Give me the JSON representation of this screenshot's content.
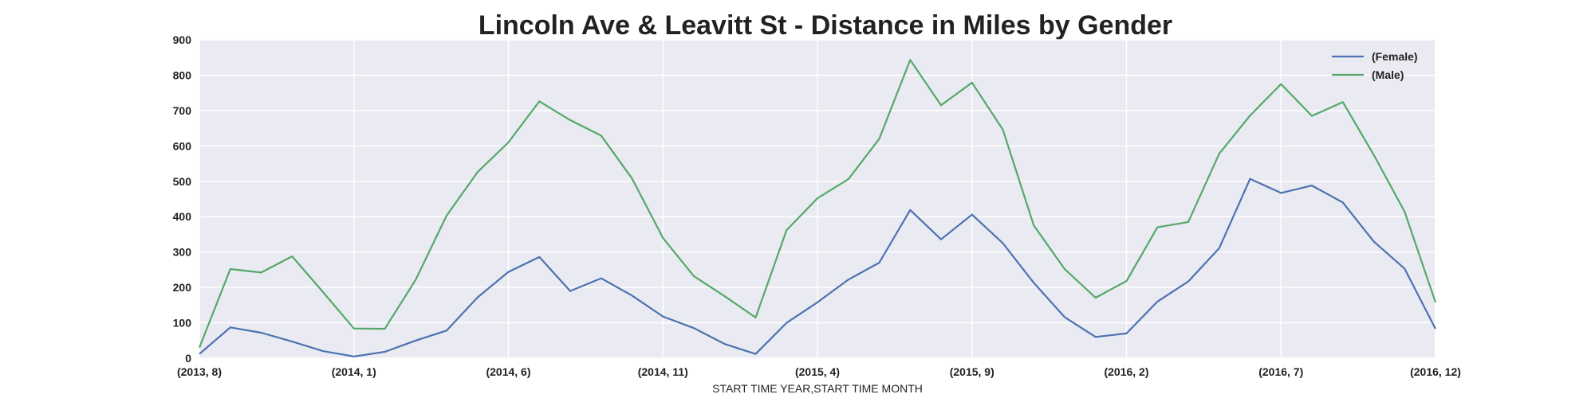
{
  "chart_data": {
    "type": "line",
    "title": "Lincoln Ave & Leavitt St - Distance in Miles by Gender",
    "xlabel": "START TIME YEAR,START TIME MONTH",
    "ylabel": "",
    "ylim": [
      0,
      900
    ],
    "yticks": [
      0,
      100,
      200,
      300,
      400,
      500,
      600,
      700,
      800,
      900
    ],
    "grid": true,
    "legend_position": "top-right",
    "background_color": "#eaeaf2",
    "xtick_labels": [
      "(2013, 8)",
      "(2014, 1)",
      "(2014, 6)",
      "(2014, 11)",
      "(2015, 4)",
      "(2015, 9)",
      "(2016, 2)",
      "(2016, 7)",
      "(2016, 12)"
    ],
    "xtick_indices": [
      0,
      5,
      10,
      15,
      20,
      25,
      30,
      35,
      40
    ],
    "x": [
      "(2013, 8)",
      "(2013, 9)",
      "(2013, 10)",
      "(2013, 11)",
      "(2013, 12)",
      "(2014, 1)",
      "(2014, 2)",
      "(2014, 3)",
      "(2014, 4)",
      "(2014, 5)",
      "(2014, 6)",
      "(2014, 7)",
      "(2014, 8)",
      "(2014, 9)",
      "(2014, 10)",
      "(2014, 11)",
      "(2014, 12)",
      "(2015, 1)",
      "(2015, 2)",
      "(2015, 3)",
      "(2015, 4)",
      "(2015, 5)",
      "(2015, 6)",
      "(2015, 7)",
      "(2015, 8)",
      "(2015, 9)",
      "(2015, 10)",
      "(2015, 11)",
      "(2015, 12)",
      "(2016, 1)",
      "(2016, 2)",
      "(2016, 3)",
      "(2016, 4)",
      "(2016, 5)",
      "(2016, 6)",
      "(2016, 7)",
      "(2016, 8)",
      "(2016, 9)",
      "(2016, 10)",
      "(2016, 11)",
      "(2016, 12)"
    ],
    "series": [
      {
        "name": "(Female)",
        "color": "#4c72b0",
        "values": [
          12,
          87,
          72,
          47,
          20,
          5,
          18,
          50,
          78,
          172,
          244,
          286,
          190,
          226,
          177,
          118,
          85,
          40,
          12,
          100,
          158,
          222,
          270,
          419,
          336,
          406,
          325,
          213,
          116,
          60,
          70,
          160,
          217,
          311,
          507,
          467,
          488,
          440,
          330,
          253,
          83
        ]
      },
      {
        "name": "(Male)",
        "color": "#55a868",
        "values": [
          30,
          252,
          242,
          288,
          187,
          84,
          83,
          222,
          403,
          526,
          610,
          726,
          673,
          629,
          508,
          340,
          232,
          175,
          115,
          362,
          452,
          506,
          620,
          843,
          715,
          779,
          646,
          375,
          252,
          171,
          218,
          370,
          385,
          578,
          686,
          775,
          685,
          724,
          575,
          414,
          158
        ]
      }
    ]
  }
}
